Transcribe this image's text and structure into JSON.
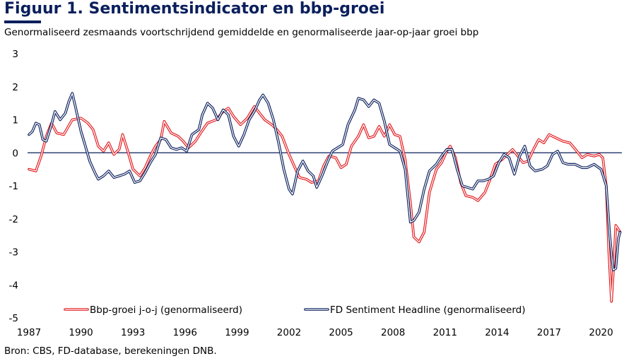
{
  "title": "Figuur 1. Sentimentsindicator en bbp-groei",
  "subtitle": "Genormaliseerd zesmaands voortschrijdend gemiddelde en genormaliseerde jaar-op-jaar groei bbp",
  "source": "Bron: CBS, FD-database, berekeningen DNB.",
  "colors": {
    "title": "#0a1f5c",
    "gdp": "#e3171b",
    "sentiment": "#0a1f5c",
    "zero_line": "#0a1f5c"
  },
  "chart_data": {
    "type": "line",
    "xlim": [
      1987,
      2021.2
    ],
    "ylim": [
      -5,
      3
    ],
    "x_ticks": [
      1987,
      1990,
      1993,
      1996,
      1999,
      2002,
      2005,
      2008,
      2011,
      2014,
      2017,
      2020
    ],
    "x_tick_labels": [
      "1987",
      "1990",
      "1993",
      "1996",
      "1999",
      "2002",
      "2005",
      "2008",
      "2011",
      "2014",
      "2017",
      "2020"
    ],
    "y_ticks": [
      3,
      2,
      1,
      0,
      -1,
      -2,
      -3,
      -4,
      -5
    ],
    "y_tick_labels": [
      "3",
      "2",
      "1",
      "0",
      "-1",
      "-2",
      "-3",
      "-4",
      "-5"
    ],
    "grid": false,
    "legend_position": "bottom",
    "series": [
      {
        "name": "Bbp-groei j-o-j (genormaliseerd)",
        "style": "double-line",
        "points": [
          [
            1987.0,
            -0.5
          ],
          [
            1987.4,
            -0.55
          ],
          [
            1987.7,
            -0.1
          ],
          [
            1988.0,
            0.5
          ],
          [
            1988.3,
            0.9
          ],
          [
            1988.6,
            0.6
          ],
          [
            1989.0,
            0.55
          ],
          [
            1989.5,
            1.0
          ],
          [
            1990.0,
            1.05
          ],
          [
            1990.4,
            0.9
          ],
          [
            1990.7,
            0.7
          ],
          [
            1991.0,
            0.2
          ],
          [
            1991.3,
            0.05
          ],
          [
            1991.6,
            0.3
          ],
          [
            1991.9,
            -0.05
          ],
          [
            1992.2,
            0.1
          ],
          [
            1992.4,
            0.55
          ],
          [
            1992.7,
            0.05
          ],
          [
            1993.0,
            -0.5
          ],
          [
            1993.4,
            -0.7
          ],
          [
            1993.7,
            -0.45
          ],
          [
            1994.0,
            -0.1
          ],
          [
            1994.3,
            0.2
          ],
          [
            1994.6,
            0.4
          ],
          [
            1994.8,
            0.95
          ],
          [
            1995.2,
            0.6
          ],
          [
            1995.6,
            0.5
          ],
          [
            1995.9,
            0.35
          ],
          [
            1996.2,
            0.15
          ],
          [
            1996.6,
            0.35
          ],
          [
            1996.9,
            0.6
          ],
          [
            1997.3,
            0.9
          ],
          [
            1997.8,
            1.0
          ],
          [
            1998.2,
            1.25
          ],
          [
            1998.5,
            1.35
          ],
          [
            1998.8,
            1.1
          ],
          [
            1999.2,
            0.85
          ],
          [
            1999.6,
            1.05
          ],
          [
            2000.0,
            1.4
          ],
          [
            2000.3,
            1.2
          ],
          [
            2000.6,
            1.0
          ],
          [
            2001.0,
            0.85
          ],
          [
            2001.3,
            0.7
          ],
          [
            2001.6,
            0.5
          ],
          [
            2002.0,
            -0.05
          ],
          [
            2002.3,
            -0.4
          ],
          [
            2002.6,
            -0.75
          ],
          [
            2003.0,
            -0.8
          ],
          [
            2003.3,
            -0.9
          ],
          [
            2003.7,
            -0.85
          ],
          [
            2004.0,
            -0.4
          ],
          [
            2004.3,
            -0.1
          ],
          [
            2004.7,
            -0.15
          ],
          [
            2005.0,
            -0.45
          ],
          [
            2005.3,
            -0.35
          ],
          [
            2005.6,
            0.2
          ],
          [
            2006.0,
            0.5
          ],
          [
            2006.3,
            0.85
          ],
          [
            2006.6,
            0.45
          ],
          [
            2006.9,
            0.5
          ],
          [
            2007.2,
            0.8
          ],
          [
            2007.5,
            0.5
          ],
          [
            2007.8,
            0.85
          ],
          [
            2008.1,
            0.55
          ],
          [
            2008.4,
            0.5
          ],
          [
            2008.7,
            -0.2
          ],
          [
            2009.0,
            -1.5
          ],
          [
            2009.2,
            -2.55
          ],
          [
            2009.5,
            -2.7
          ],
          [
            2009.8,
            -2.4
          ],
          [
            2010.1,
            -1.2
          ],
          [
            2010.5,
            -0.5
          ],
          [
            2010.8,
            -0.3
          ],
          [
            2011.1,
            0.05
          ],
          [
            2011.3,
            0.2
          ],
          [
            2011.6,
            -0.15
          ],
          [
            2011.9,
            -0.9
          ],
          [
            2012.2,
            -1.3
          ],
          [
            2012.6,
            -1.35
          ],
          [
            2012.9,
            -1.45
          ],
          [
            2013.3,
            -1.2
          ],
          [
            2013.6,
            -0.8
          ],
          [
            2013.9,
            -0.35
          ],
          [
            2014.3,
            -0.2
          ],
          [
            2014.6,
            -0.05
          ],
          [
            2014.9,
            0.1
          ],
          [
            2015.2,
            -0.1
          ],
          [
            2015.5,
            -0.3
          ],
          [
            2015.8,
            -0.25
          ],
          [
            2016.1,
            0.1
          ],
          [
            2016.4,
            0.4
          ],
          [
            2016.7,
            0.3
          ],
          [
            2017.0,
            0.55
          ],
          [
            2017.4,
            0.45
          ],
          [
            2017.8,
            0.35
          ],
          [
            2018.2,
            0.3
          ],
          [
            2018.6,
            0.05
          ],
          [
            2018.9,
            -0.15
          ],
          [
            2019.2,
            -0.05
          ],
          [
            2019.6,
            -0.1
          ],
          [
            2019.9,
            -0.05
          ],
          [
            2020.1,
            -0.15
          ],
          [
            2020.3,
            -1.0
          ],
          [
            2020.45,
            -3.0
          ],
          [
            2020.6,
            -4.5
          ],
          [
            2020.75,
            -3.2
          ],
          [
            2020.85,
            -2.2
          ],
          [
            2021.1,
            -2.4
          ]
        ]
      },
      {
        "name": "FD Sentiment Headline (genormaliseerd)",
        "style": "double-line",
        "points": [
          [
            1987.0,
            0.55
          ],
          [
            1987.2,
            0.65
          ],
          [
            1987.4,
            0.9
          ],
          [
            1987.6,
            0.85
          ],
          [
            1987.8,
            0.4
          ],
          [
            1988.0,
            0.35
          ],
          [
            1988.3,
            0.85
          ],
          [
            1988.5,
            1.25
          ],
          [
            1988.8,
            1.0
          ],
          [
            1989.1,
            1.2
          ],
          [
            1989.3,
            1.55
          ],
          [
            1989.5,
            1.8
          ],
          [
            1989.7,
            1.35
          ],
          [
            1990.0,
            0.65
          ],
          [
            1990.2,
            0.3
          ],
          [
            1990.5,
            -0.25
          ],
          [
            1990.8,
            -0.6
          ],
          [
            1991.0,
            -0.8
          ],
          [
            1991.3,
            -0.7
          ],
          [
            1991.6,
            -0.55
          ],
          [
            1991.9,
            -0.75
          ],
          [
            1992.2,
            -0.7
          ],
          [
            1992.5,
            -0.65
          ],
          [
            1992.8,
            -0.55
          ],
          [
            1993.1,
            -0.9
          ],
          [
            1993.4,
            -0.85
          ],
          [
            1993.7,
            -0.6
          ],
          [
            1994.0,
            -0.3
          ],
          [
            1994.3,
            -0.05
          ],
          [
            1994.6,
            0.45
          ],
          [
            1994.9,
            0.4
          ],
          [
            1995.2,
            0.15
          ],
          [
            1995.5,
            0.1
          ],
          [
            1995.8,
            0.15
          ],
          [
            1996.1,
            0.05
          ],
          [
            1996.4,
            0.55
          ],
          [
            1996.8,
            0.7
          ],
          [
            1997.0,
            1.15
          ],
          [
            1997.3,
            1.5
          ],
          [
            1997.6,
            1.35
          ],
          [
            1997.9,
            1.0
          ],
          [
            1998.2,
            1.3
          ],
          [
            1998.5,
            1.15
          ],
          [
            1998.8,
            0.5
          ],
          [
            1999.1,
            0.2
          ],
          [
            1999.4,
            0.55
          ],
          [
            1999.7,
            1.0
          ],
          [
            2000.0,
            1.25
          ],
          [
            2000.3,
            1.6
          ],
          [
            2000.5,
            1.75
          ],
          [
            2000.8,
            1.5
          ],
          [
            2001.1,
            1.0
          ],
          [
            2001.4,
            0.3
          ],
          [
            2001.7,
            -0.5
          ],
          [
            2002.0,
            -1.1
          ],
          [
            2002.2,
            -1.25
          ],
          [
            2002.5,
            -0.55
          ],
          [
            2002.8,
            -0.25
          ],
          [
            2003.1,
            -0.55
          ],
          [
            2003.4,
            -0.7
          ],
          [
            2003.6,
            -1.05
          ],
          [
            2003.9,
            -0.7
          ],
          [
            2004.2,
            -0.3
          ],
          [
            2004.5,
            0.05
          ],
          [
            2004.8,
            0.15
          ],
          [
            2005.1,
            0.25
          ],
          [
            2005.4,
            0.85
          ],
          [
            2005.8,
            1.3
          ],
          [
            2006.0,
            1.65
          ],
          [
            2006.3,
            1.6
          ],
          [
            2006.6,
            1.4
          ],
          [
            2006.9,
            1.6
          ],
          [
            2007.2,
            1.5
          ],
          [
            2007.5,
            0.95
          ],
          [
            2007.8,
            0.25
          ],
          [
            2008.1,
            0.15
          ],
          [
            2008.4,
            0.05
          ],
          [
            2008.7,
            -0.5
          ],
          [
            2009.0,
            -2.1
          ],
          [
            2009.2,
            -2.05
          ],
          [
            2009.5,
            -1.8
          ],
          [
            2009.8,
            -1.1
          ],
          [
            2010.1,
            -0.55
          ],
          [
            2010.5,
            -0.35
          ],
          [
            2010.8,
            -0.1
          ],
          [
            2011.1,
            0.1
          ],
          [
            2011.4,
            0.1
          ],
          [
            2011.7,
            -0.5
          ],
          [
            2012.0,
            -1.0
          ],
          [
            2012.3,
            -1.05
          ],
          [
            2012.6,
            -1.1
          ],
          [
            2012.9,
            -0.85
          ],
          [
            2013.2,
            -0.85
          ],
          [
            2013.5,
            -0.8
          ],
          [
            2013.8,
            -0.7
          ],
          [
            2014.1,
            -0.3
          ],
          [
            2014.4,
            -0.05
          ],
          [
            2014.7,
            -0.15
          ],
          [
            2015.0,
            -0.65
          ],
          [
            2015.3,
            -0.1
          ],
          [
            2015.6,
            0.2
          ],
          [
            2015.9,
            -0.4
          ],
          [
            2016.2,
            -0.55
          ],
          [
            2016.6,
            -0.5
          ],
          [
            2016.9,
            -0.4
          ],
          [
            2017.2,
            -0.05
          ],
          [
            2017.5,
            0.05
          ],
          [
            2017.8,
            -0.3
          ],
          [
            2018.1,
            -0.35
          ],
          [
            2018.5,
            -0.35
          ],
          [
            2018.9,
            -0.45
          ],
          [
            2019.2,
            -0.45
          ],
          [
            2019.6,
            -0.35
          ],
          [
            2020.0,
            -0.5
          ],
          [
            2020.3,
            -1.0
          ],
          [
            2020.5,
            -2.5
          ],
          [
            2020.7,
            -3.55
          ],
          [
            2020.85,
            -3.5
          ],
          [
            2021.0,
            -2.6
          ],
          [
            2021.1,
            -2.4
          ]
        ]
      }
    ]
  }
}
